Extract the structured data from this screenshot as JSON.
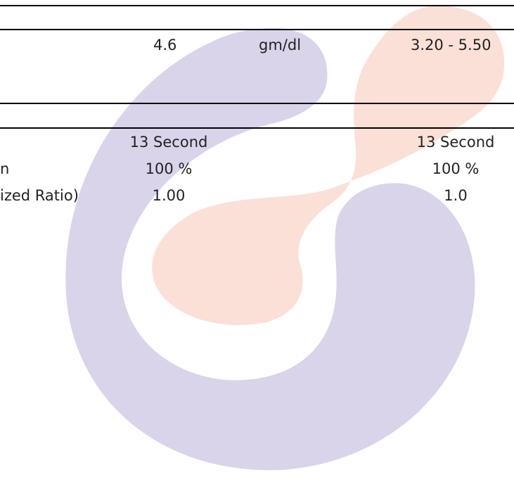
{
  "colors": {
    "watermark_ring": "#d9d4ea",
    "watermark_drop": "#fae0d6",
    "rule_lines": "#000000",
    "text": "#222222"
  },
  "watermark": {
    "icon": "lab-logo-watermark-icon"
  },
  "sections": [
    {
      "rows": [
        {
          "result": "4.6",
          "unit": "gm/dl",
          "reference": "3.20 - 5.50"
        }
      ]
    },
    {
      "rows": [
        {
          "label": "",
          "result": "13 Second",
          "reference": "13 Second"
        },
        {
          "label": "n",
          "result": "100 %",
          "reference": "100 %"
        },
        {
          "label": "ized Ratio)",
          "result": "1.00",
          "reference": "1.0"
        }
      ]
    }
  ]
}
